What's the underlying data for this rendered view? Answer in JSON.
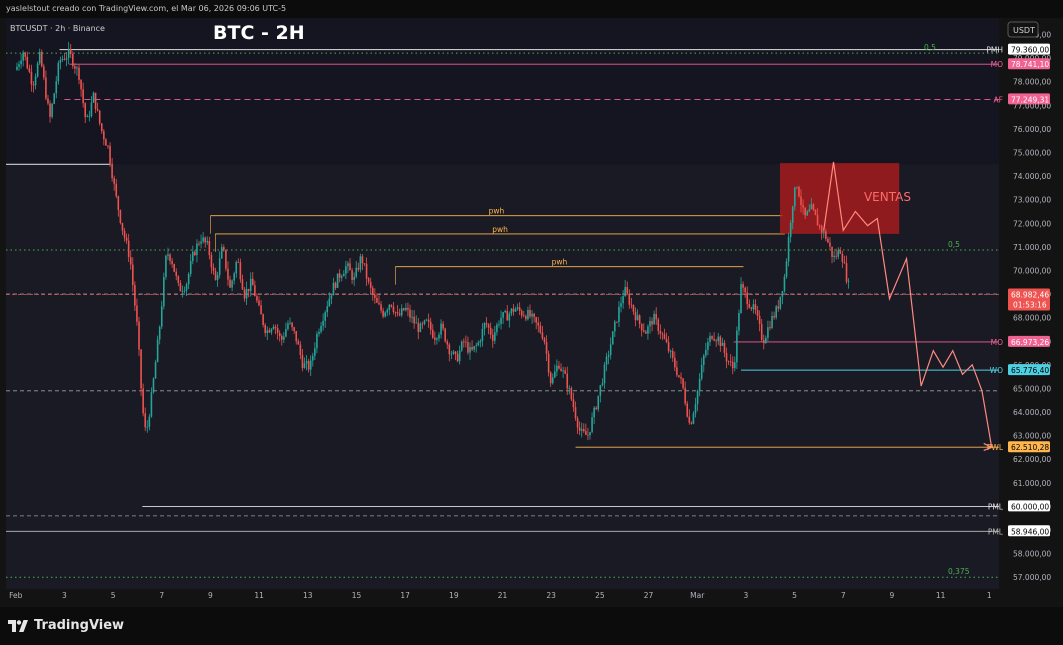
{
  "header": {
    "credit": "yaslelstout creado con TradingView.com, el Mar 06, 2026 09:06 UTC-5"
  },
  "chart_data": {
    "type": "candlestick",
    "symbol": "BTCUSDT · 2h · Binance",
    "title": "BTC - 2H",
    "currency": "USDT",
    "ylim": [
      56500,
      80700
    ],
    "xlim": [
      -0.4,
      40.4
    ],
    "x_ticks": [
      {
        "x": 0,
        "label": "Feb"
      },
      {
        "x": 2,
        "label": "3"
      },
      {
        "x": 4,
        "label": "5"
      },
      {
        "x": 6,
        "label": "7"
      },
      {
        "x": 8,
        "label": "9"
      },
      {
        "x": 10,
        "label": "11"
      },
      {
        "x": 12,
        "label": "13"
      },
      {
        "x": 14,
        "label": "15"
      },
      {
        "x": 16,
        "label": "17"
      },
      {
        "x": 18,
        "label": "19"
      },
      {
        "x": 20,
        "label": "21"
      },
      {
        "x": 22,
        "label": "23"
      },
      {
        "x": 24,
        "label": "25"
      },
      {
        "x": 26,
        "label": "27"
      },
      {
        "x": 28,
        "label": "Mar"
      },
      {
        "x": 30,
        "label": "3"
      },
      {
        "x": 32,
        "label": "5"
      },
      {
        "x": 34,
        "label": "7"
      },
      {
        "x": 36,
        "label": "9"
      },
      {
        "x": 38,
        "label": "11"
      },
      {
        "x": 40,
        "label": "1"
      }
    ],
    "y_ticks": [
      57000,
      58000,
      59000,
      60000,
      61000,
      62000,
      63000,
      64000,
      65000,
      66000,
      67000,
      68000,
      69000,
      70000,
      71000,
      72000,
      73000,
      74000,
      75000,
      76000,
      77000,
      78000,
      79000,
      80000
    ],
    "y_tick_labels": [
      "57.000,00",
      "58.000,00",
      "59.000,00",
      "60.000,00",
      "61.000,00",
      "62.000,00",
      "63.000,00",
      "64.000,00",
      "65.000,00",
      "66.000,00",
      "67.000,00",
      "68.000,00",
      "69.000,00",
      "70.000,00",
      "71.000,00",
      "72.000,00",
      "73.000,00",
      "74.000,00",
      "75.000,00",
      "76.000,00",
      "77.000,00",
      "78.000,00",
      "79.000,00",
      "80.000,00"
    ],
    "price_path": [
      [
        0,
        78500
      ],
      [
        0.3,
        79300
      ],
      [
        0.7,
        77900
      ],
      [
        1.0,
        79100
      ],
      [
        1.4,
        76400
      ],
      [
        1.8,
        78900
      ],
      [
        2.2,
        79200
      ],
      [
        2.6,
        78300
      ],
      [
        2.9,
        76200
      ],
      [
        3.2,
        77400
      ],
      [
        3.5,
        76000
      ],
      [
        3.8,
        75200
      ],
      [
        4.1,
        73200
      ],
      [
        4.4,
        71700
      ],
      [
        4.7,
        70500
      ],
      [
        5.0,
        67500
      ],
      [
        5.2,
        64200
      ],
      [
        5.35,
        63000
      ],
      [
        5.6,
        64800
      ],
      [
        5.9,
        67500
      ],
      [
        6.2,
        70800
      ],
      [
        6.4,
        70500
      ],
      [
        6.7,
        69200
      ],
      [
        7.0,
        69400
      ],
      [
        7.3,
        70700
      ],
      [
        7.6,
        71400
      ],
      [
        7.9,
        71000
      ],
      [
        8.2,
        69500
      ],
      [
        8.5,
        71000
      ],
      [
        8.8,
        69200
      ],
      [
        9.1,
        70500
      ],
      [
        9.4,
        69000
      ],
      [
        9.7,
        69500
      ],
      [
        10.0,
        68300
      ],
      [
        10.3,
        67400
      ],
      [
        10.6,
        67800
      ],
      [
        10.9,
        67000
      ],
      [
        11.2,
        67800
      ],
      [
        11.5,
        67200
      ],
      [
        11.8,
        66000
      ],
      [
        12.1,
        65900
      ],
      [
        12.4,
        67400
      ],
      [
        12.7,
        68300
      ],
      [
        13.0,
        69200
      ],
      [
        13.3,
        69800
      ],
      [
        13.6,
        70200
      ],
      [
        13.9,
        69600
      ],
      [
        14.2,
        70600
      ],
      [
        14.5,
        69400
      ],
      [
        14.8,
        68600
      ],
      [
        15.1,
        68200
      ],
      [
        15.4,
        68700
      ],
      [
        15.7,
        68000
      ],
      [
        16.0,
        68400
      ],
      [
        16.3,
        67900
      ],
      [
        16.6,
        67500
      ],
      [
        16.9,
        67800
      ],
      [
        17.2,
        67200
      ],
      [
        17.5,
        67600
      ],
      [
        17.8,
        66700
      ],
      [
        18.1,
        66200
      ],
      [
        18.4,
        67000
      ],
      [
        18.7,
        66500
      ],
      [
        19.0,
        66900
      ],
      [
        19.3,
        67800
      ],
      [
        19.6,
        67200
      ],
      [
        19.9,
        68000
      ],
      [
        20.2,
        68100
      ],
      [
        20.5,
        68400
      ],
      [
        20.8,
        68200
      ],
      [
        21.1,
        68100
      ],
      [
        21.4,
        67700
      ],
      [
        21.7,
        67200
      ],
      [
        22.0,
        65200
      ],
      [
        22.3,
        66100
      ],
      [
        22.6,
        65400
      ],
      [
        22.9,
        64300
      ],
      [
        23.2,
        63100
      ],
      [
        23.5,
        63000
      ],
      [
        23.8,
        64100
      ],
      [
        24.1,
        65400
      ],
      [
        24.4,
        66700
      ],
      [
        24.7,
        68000
      ],
      [
        25.0,
        69200
      ],
      [
        25.3,
        68500
      ],
      [
        25.6,
        67800
      ],
      [
        25.9,
        67400
      ],
      [
        26.2,
        68000
      ],
      [
        26.5,
        67400
      ],
      [
        26.8,
        66700
      ],
      [
        27.1,
        65900
      ],
      [
        27.4,
        65100
      ],
      [
        27.7,
        63400
      ],
      [
        28.0,
        64800
      ],
      [
        28.3,
        66500
      ],
      [
        28.6,
        67300
      ],
      [
        28.9,
        67100
      ],
      [
        29.2,
        66300
      ],
      [
        29.5,
        65800
      ],
      [
        29.8,
        69300
      ],
      [
        30.1,
        68700
      ],
      [
        30.4,
        68200
      ],
      [
        30.7,
        67000
      ],
      [
        31.0,
        67800
      ],
      [
        31.3,
        68400
      ],
      [
        31.6,
        69800
      ],
      [
        31.9,
        72800
      ],
      [
        32.1,
        73700
      ],
      [
        32.4,
        72200
      ],
      [
        32.7,
        72600
      ],
      [
        33.0,
        71900
      ],
      [
        33.3,
        71400
      ],
      [
        33.6,
        70500
      ],
      [
        33.9,
        70900
      ],
      [
        34.1,
        69900
      ],
      [
        34.3,
        69000
      ]
    ],
    "projection": [
      [
        33.2,
        71700
      ],
      [
        33.6,
        74600
      ],
      [
        34.0,
        71700
      ],
      [
        34.5,
        72500
      ],
      [
        35.0,
        71900
      ],
      [
        35.4,
        72200
      ],
      [
        35.9,
        68800
      ],
      [
        36.6,
        70500
      ],
      [
        37.2,
        65100
      ],
      [
        37.7,
        66600
      ],
      [
        38.1,
        65900
      ],
      [
        38.5,
        66600
      ],
      [
        38.9,
        65600
      ],
      [
        39.3,
        66000
      ],
      [
        39.7,
        64900
      ],
      [
        40.1,
        62500
      ]
    ],
    "levels": [
      {
        "label": "PMH",
        "price": 79360,
        "value": "79.360,00",
        "color": "#e0e0e0",
        "style": "solid",
        "box": "#ffffff",
        "box_text": "#000000",
        "from": 1.8
      },
      {
        "label": "",
        "price": 79210,
        "value": "0,5",
        "color": "#4caf50",
        "style": "dotted",
        "from": -0.4,
        "fib": true
      },
      {
        "label": "MO",
        "price": 78741,
        "value": "78.741,10",
        "color": "#f06292",
        "style": "solid",
        "box": "#f06292",
        "box_text": "#ffffff",
        "from": 2.2
      },
      {
        "label": "AF",
        "price": 77249,
        "value": "77.249,31",
        "color": "#f06292",
        "style": "dashed",
        "box": "#f06292",
        "box_text": "#ffffff",
        "from": 2.0
      },
      {
        "label": "",
        "price": 70870,
        "value": "0,5",
        "color": "#4caf50",
        "style": "dotted",
        "from": -0.4,
        "fib": true
      },
      {
        "label": "MO",
        "price": 66973,
        "value": "66.973,26",
        "color": "#f06292",
        "style": "solid",
        "box": "#f06292",
        "box_text": "#ffffff",
        "from": 29.5
      },
      {
        "label": "WO",
        "price": 65776,
        "value": "65.776,40",
        "color": "#4dd0e1",
        "style": "solid",
        "box": "#4dd0e1",
        "box_text": "#000000",
        "from": 29.8
      },
      {
        "label": "PWL",
        "price": 62510,
        "value": "62.510,28",
        "color": "#ffb74d",
        "style": "solid",
        "box": "#ffb74d",
        "box_text": "#000000",
        "from": 23.0
      },
      {
        "label": "PML",
        "price": 60000,
        "value": "60.000,00",
        "color": "#e0e0e0",
        "style": "solid",
        "box": "#ffffff",
        "box_text": "#000000",
        "from": 5.2
      },
      {
        "label": "PML",
        "price": 58946,
        "value": "58.946,00",
        "color": "#bdbdbd",
        "style": "solid",
        "box": "#ffffff",
        "box_text": "#000000",
        "from": -0.4
      },
      {
        "label": "",
        "price": 57000,
        "value": "0,375",
        "color": "#4caf50",
        "style": "dotted",
        "from": -0.4,
        "fib": true
      }
    ],
    "dashed_lines": [
      69000,
      64900,
      59600
    ],
    "pwh_lines": [
      {
        "label": "pwh",
        "price": 72320,
        "from": 8.0,
        "to": 31.5
      },
      {
        "label": "pwh",
        "price": 71550,
        "from": 8.2,
        "to": 31.6
      },
      {
        "label": "pwh",
        "price": 70160,
        "from": 15.6,
        "to": 29.9
      }
    ],
    "current_price": {
      "value": "68.982,46",
      "timer": "01:53:16",
      "price": 68982
    },
    "zone": {
      "label": "VENTAS",
      "x0": 31.4,
      "x1": 36.3,
      "y0": 71550,
      "y1": 74550
    }
  }
}
